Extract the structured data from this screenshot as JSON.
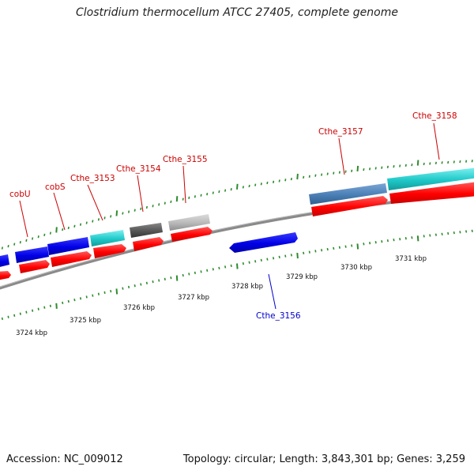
{
  "title": "Clostridium thermocellum ATCC 27405, complete genome",
  "footer": {
    "accession": "Accession: NC_009012",
    "topology": "Topology: circular; Length: 3,843,301 bp; Genes: 3,259"
  },
  "colors": {
    "backbone": "#8c8c8c",
    "tick": "#2e8b2e",
    "label_forward": "#cc0000",
    "label_reverse": "#0000cc",
    "cds_red": "#ff0000",
    "blue_gene": "#0000e6",
    "cyan_gene": "#20c8c8",
    "steel_gene": "#4a7fb5",
    "dark_gray_gene": "#555555",
    "light_gray_gene": "#b8b8b8"
  },
  "scale_labels": [
    "3724 kbp",
    "3725 kbp",
    "3726 kbp",
    "3727 kbp",
    "3728 kbp",
    "3729 kbp",
    "3730 kbp",
    "3731 kbp"
  ],
  "gene_labels": [
    {
      "text": "cobU",
      "color": "label_forward"
    },
    {
      "text": "cobS",
      "color": "label_forward"
    },
    {
      "text": "Cthe_3153",
      "color": "label_forward"
    },
    {
      "text": "Cthe_3154",
      "color": "label_forward"
    },
    {
      "text": "Cthe_3155",
      "color": "label_forward"
    },
    {
      "text": "Cthe_3156",
      "color": "label_reverse"
    },
    {
      "text": "Cthe_3157",
      "color": "label_forward"
    },
    {
      "text": "Cthe_3158",
      "color": "label_forward"
    }
  ]
}
